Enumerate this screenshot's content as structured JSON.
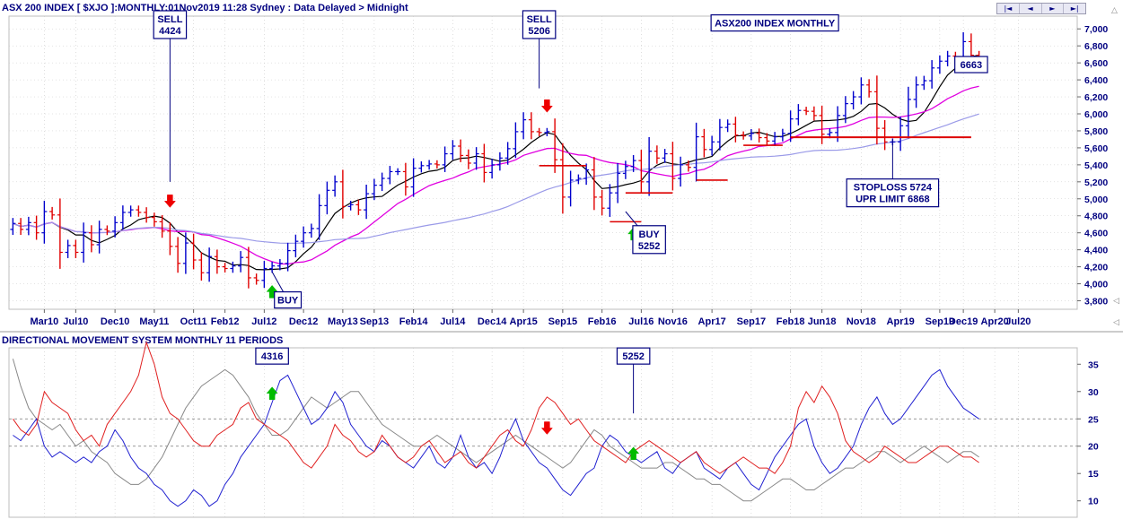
{
  "header": {
    "title": "ASX 200 INDEX [ $XJO ]:MONTHLY:01Nov2019 11:28 Sydney : Data Delayed > Midnight",
    "indicator_title": "DIRECTIONAL MOVEMENT SYSTEM MONTHLY 11 PERIODS"
  },
  "nav": {
    "buttons": [
      "|◄",
      "◄",
      "►",
      "►|"
    ]
  },
  "colors": {
    "up_bar": "#0000cc",
    "down_bar": "#e00000",
    "ma_short": "#000000",
    "ma_medium": "#e000e0",
    "ma_long": "#9a9ae8",
    "annotation_border": "#000080",
    "grid": "#c8c8c8",
    "adx": "#888888",
    "plus_di": "#2020d0",
    "minus_di": "#e02020",
    "buy_arrow": "#00bb00",
    "sell_arrow": "#ee0000",
    "level_line": "#dd0000"
  },
  "chart_data": [
    {
      "type": "ohlc",
      "title": "ASX200 INDEX MONTHLY",
      "x_axis_labels": [
        "Mar10",
        "Jul10",
        "Dec10",
        "May11",
        "Oct11",
        "Feb12",
        "Jul12",
        "Dec12",
        "May13",
        "Sep13",
        "Feb14",
        "Jul14",
        "Dec14",
        "Apr15",
        "Sep15",
        "Feb16",
        "Jul16",
        "Nov16",
        "Apr17",
        "Sep17",
        "Feb18",
        "Jun18",
        "Nov18",
        "Apr19",
        "Sep19",
        "Dec19",
        "Apr20",
        "Jul20"
      ],
      "x_axis_positions": [
        "2010-03",
        "2010-07",
        "2010-12",
        "2011-05",
        "2011-10",
        "2012-02",
        "2012-07",
        "2012-12",
        "2013-05",
        "2013-09",
        "2014-02",
        "2014-07",
        "2014-12",
        "2015-04",
        "2015-09",
        "2016-02",
        "2016-07",
        "2016-11",
        "2017-04",
        "2017-09",
        "2018-02",
        "2018-06",
        "2018-11",
        "2019-04",
        "2019-09",
        "2019-12",
        "2020-04",
        "2020-07"
      ],
      "y_ticks": [
        "3,800",
        "4,000",
        "4,200",
        "4,400",
        "4,600",
        "4,800",
        "5,000",
        "5,200",
        "5,400",
        "5,600",
        "5,800",
        "6,000",
        "6,200",
        "6,400",
        "6,600",
        "6,800",
        "7,000"
      ],
      "ylim": [
        3700,
        7150
      ],
      "start_month": "2009-11",
      "close": [
        4710,
        4640,
        4720,
        4600,
        4850,
        4810,
        4370,
        4450,
        4370,
        4600,
        4460,
        4640,
        4620,
        4720,
        4840,
        4870,
        4840,
        4780,
        4730,
        4620,
        4440,
        4240,
        4480,
        4280,
        4130,
        4320,
        4200,
        4180,
        4210,
        4310,
        4070,
        4040,
        4180,
        4210,
        4240,
        4390,
        4500,
        4600,
        4650,
        4920,
        5100,
        5200,
        4910,
        4930,
        4870,
        5060,
        5160,
        5240,
        5320,
        5320,
        5140,
        5360,
        5390,
        5410,
        5400,
        5530,
        5620,
        5510,
        5420,
        5530,
        5310,
        5400,
        5480,
        5590,
        5790,
        5930,
        5790,
        5780,
        5790,
        5460,
        5020,
        5220,
        5240,
        5340,
        5020,
        4890,
        5070,
        5300,
        5380,
        5450,
        5200,
        5560,
        5480,
        5530,
        5240,
        5400,
        5370,
        5730,
        5580,
        5670,
        5840,
        5880,
        5750,
        5740,
        5770,
        5720,
        5680,
        5730,
        5770,
        5940,
        6040,
        6030,
        5980,
        5760,
        5780,
        5980,
        6120,
        6200,
        6340,
        6260,
        5830,
        5670,
        5670,
        5860,
        6170,
        6340,
        6390,
        6540,
        6620,
        6680,
        6650,
        6850,
        6690,
        6660
      ],
      "open": [
        4640,
        4710,
        4640,
        4720,
        4600,
        4850,
        4810,
        4370,
        4450,
        4370,
        4600,
        4460,
        4640,
        4620,
        4720,
        4840,
        4870,
        4840,
        4780,
        4730,
        4620,
        4440,
        4240,
        4480,
        4280,
        4130,
        4320,
        4200,
        4180,
        4210,
        4310,
        4070,
        4040,
        4180,
        4210,
        4240,
        4390,
        4500,
        4600,
        4650,
        4920,
        5100,
        5200,
        4910,
        4930,
        4870,
        5060,
        5160,
        5240,
        5320,
        5320,
        5140,
        5360,
        5390,
        5410,
        5400,
        5530,
        5620,
        5510,
        5420,
        5530,
        5310,
        5400,
        5480,
        5590,
        5790,
        5930,
        5790,
        5780,
        5790,
        5460,
        5020,
        5220,
        5240,
        5340,
        5020,
        4890,
        5070,
        5300,
        5380,
        5450,
        5200,
        5560,
        5480,
        5530,
        5240,
        5400,
        5370,
        5730,
        5580,
        5670,
        5840,
        5880,
        5750,
        5740,
        5770,
        5720,
        5680,
        5730,
        5770,
        5940,
        6040,
        6030,
        5980,
        5760,
        5780,
        5980,
        6120,
        6200,
        6340,
        6260,
        5830,
        5670,
        5670,
        5860,
        6170,
        6340,
        6390,
        6540,
        6620,
        6680,
        6650,
        6850,
        6690
      ],
      "series": [
        {
          "name": "short_ma",
          "color_key": "ma_short"
        },
        {
          "name": "medium_ma",
          "color_key": "ma_medium"
        },
        {
          "name": "long_ma",
          "color_key": "ma_long"
        }
      ],
      "annotations": [
        {
          "text": [
            "SELL",
            "4424"
          ],
          "month": "2011-07",
          "box_value": 7050,
          "line_to": 5200
        },
        {
          "text": [
            "SELL",
            "5206"
          ],
          "month": "2015-06",
          "box_value": 7050,
          "line_to": 6300
        },
        {
          "text": [
            "ASX200 INDEX MONTHLY"
          ],
          "month": "2017-12",
          "box_value": 7070
        },
        {
          "text": [
            "6663"
          ],
          "month": "2020-01",
          "box_value": 6580,
          "line_from_month": "2019-12",
          "line_from_value": 6670
        },
        {
          "text": [
            "BUY"
          ],
          "month": "2012-10",
          "box_value": 3810,
          "line_to_month": "2012-08",
          "line_to_value": 4140
        },
        {
          "text": [
            "BUY",
            "5252"
          ],
          "month": "2016-08",
          "box_value": 4520,
          "line_to_month": "2016-05",
          "line_to_value": 4850
        },
        {
          "text": [
            "STOPLOSS 5724",
            "UPR LIMIT 6868"
          ],
          "month": "2019-03",
          "box_value": 5070,
          "line_to": 5700
        }
      ],
      "arrows": [
        {
          "dir": "down",
          "month": "2011-07",
          "value": 4920
        },
        {
          "dir": "up",
          "month": "2012-08",
          "value": 3960
        },
        {
          "dir": "down",
          "month": "2015-07",
          "value": 6040
        },
        {
          "dir": "up",
          "month": "2016-06",
          "value": 4640
        }
      ],
      "levels": [
        {
          "value": 5390,
          "from": "2015-06",
          "to": "2015-12"
        },
        {
          "value": 5070,
          "from": "2016-05",
          "to": "2016-11"
        },
        {
          "value": 4730,
          "from": "2016-03",
          "to": "2016-07"
        },
        {
          "value": 5220,
          "from": "2017-02",
          "to": "2017-06"
        },
        {
          "value": 5630,
          "from": "2017-08",
          "to": "2018-01"
        },
        {
          "value": 5724,
          "from": "2018-02",
          "to": "2020-01"
        }
      ]
    },
    {
      "type": "line",
      "title": "DIRECTIONAL MOVEMENT SYSTEM MONTHLY 11 PERIODS",
      "y_ticks": [
        "10",
        "15",
        "20",
        "25",
        "30",
        "35"
      ],
      "ylim": [
        7,
        38
      ],
      "dashed_levels": [
        20,
        25
      ],
      "adx": [
        36,
        31,
        27,
        25,
        24,
        23,
        24,
        22,
        20,
        21,
        19,
        18,
        17,
        15,
        14,
        13,
        13,
        14,
        16,
        18,
        21,
        24,
        27,
        29,
        31,
        32,
        33,
        34,
        33,
        31,
        29,
        26,
        24,
        22,
        22,
        23,
        25,
        27,
        29,
        28,
        27,
        28,
        29,
        30,
        30,
        28,
        26,
        24,
        23,
        22,
        21,
        20,
        20,
        21,
        22,
        21,
        20,
        19,
        18,
        17,
        18,
        19,
        20,
        21,
        22,
        21,
        20,
        19,
        18,
        17,
        16,
        17,
        19,
        21,
        23,
        22,
        20,
        19,
        18,
        17,
        16,
        16,
        16,
        17,
        17,
        16,
        15,
        14,
        14,
        13,
        13,
        12,
        11,
        10,
        10,
        11,
        12,
        13,
        14,
        14,
        13,
        12,
        12,
        13,
        14,
        15,
        16,
        16,
        17,
        18,
        19,
        19,
        18,
        17,
        18,
        19,
        20,
        19,
        18,
        17,
        18,
        19,
        19,
        18
      ],
      "plus_di": [
        22,
        21,
        23,
        25,
        20,
        18,
        19,
        18,
        17,
        18,
        17,
        19,
        20,
        23,
        21,
        18,
        16,
        15,
        13,
        12,
        10,
        9,
        10,
        12,
        11,
        9,
        10,
        13,
        15,
        18,
        20,
        22,
        24,
        28,
        32,
        33,
        30,
        27,
        24,
        25,
        27,
        30,
        28,
        24,
        22,
        20,
        19,
        21,
        20,
        18,
        17,
        16,
        18,
        20,
        17,
        16,
        18,
        22,
        18,
        16,
        17,
        15,
        18,
        22,
        25,
        21,
        19,
        17,
        16,
        14,
        12,
        11,
        13,
        15,
        16,
        20,
        22,
        21,
        19,
        18,
        17,
        18,
        19,
        16,
        15,
        17,
        18,
        19,
        16,
        15,
        14,
        16,
        17,
        15,
        13,
        12,
        15,
        18,
        20,
        22,
        24,
        25,
        20,
        17,
        15,
        16,
        18,
        20,
        24,
        27,
        29,
        26,
        24,
        25,
        27,
        29,
        31,
        33,
        34,
        31,
        29,
        27,
        26,
        25
      ],
      "minus_di": [
        25,
        23,
        22,
        24,
        30,
        28,
        27,
        26,
        23,
        21,
        22,
        20,
        24,
        26,
        28,
        30,
        33,
        39,
        35,
        29,
        26,
        25,
        23,
        21,
        20,
        20,
        22,
        23,
        24,
        27,
        28,
        25,
        24,
        23,
        22,
        21,
        19,
        17,
        16,
        18,
        20,
        24,
        22,
        21,
        19,
        18,
        19,
        22,
        20,
        18,
        17,
        18,
        20,
        21,
        19,
        17,
        18,
        19,
        17,
        16,
        18,
        20,
        22,
        23,
        21,
        20,
        23,
        27,
        29,
        28,
        26,
        24,
        25,
        23,
        21,
        20,
        19,
        18,
        17,
        19,
        20,
        21,
        20,
        19,
        18,
        17,
        18,
        19,
        17,
        16,
        15,
        16,
        17,
        18,
        17,
        16,
        16,
        15,
        17,
        20,
        27,
        30,
        28,
        31,
        29,
        26,
        21,
        19,
        18,
        17,
        18,
        20,
        19,
        18,
        17,
        17,
        18,
        19,
        20,
        20,
        19,
        18,
        18,
        17
      ],
      "callouts": [
        {
          "text": "4316",
          "month": "2012-08",
          "box_value": 36.5,
          "line_to": 35
        },
        {
          "text": "5252",
          "month": "2016-06",
          "box_value": 36.5,
          "line_to": 26
        }
      ],
      "arrows": [
        {
          "dir": "up",
          "month": "2012-08",
          "value": 30.5
        },
        {
          "dir": "down",
          "month": "2015-07",
          "value": 22.5
        },
        {
          "dir": "up",
          "month": "2016-06",
          "value": 19.5
        }
      ]
    }
  ]
}
